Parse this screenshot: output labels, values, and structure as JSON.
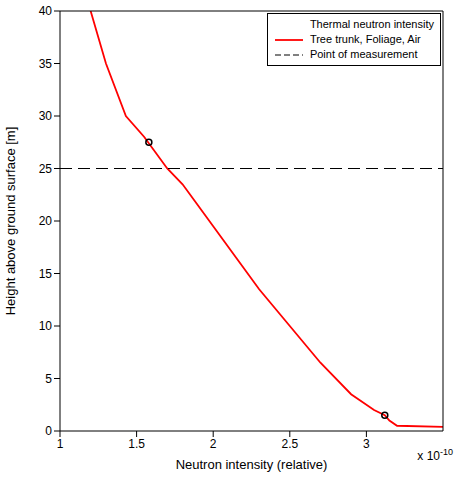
{
  "chart_data": {
    "type": "line",
    "x_label": "Neutron intensity (relative)",
    "y_label": "Height above ground surface [m]",
    "x_multiplier": {
      "base": "x 10",
      "exponent": "-10"
    },
    "xlim": [
      1,
      3.5
    ],
    "xticks": [
      1,
      1.5,
      2,
      2.5,
      3
    ],
    "ylim": [
      0,
      40
    ],
    "yticks": [
      0,
      5,
      10,
      15,
      20,
      25,
      30,
      35,
      40
    ],
    "grid": false,
    "legend": "upper right",
    "legend_title": "Thermal neutron intensity",
    "series": [
      {
        "name": "Tree trunk, Foliage, Air",
        "color": "#ff0000",
        "line_style": "solid",
        "x": [
          1.2,
          1.3,
          1.43,
          1.55,
          1.6,
          1.7,
          1.8,
          1.9,
          2.0,
          2.15,
          2.3,
          2.5,
          2.7,
          2.9,
          3.05,
          3.12,
          3.15,
          3.2,
          3.5
        ],
        "values": [
          40,
          35,
          30,
          28,
          27,
          25,
          23.5,
          21.5,
          19.5,
          16.5,
          13.5,
          10,
          6.5,
          3.5,
          2,
          1.5,
          1,
          0.5,
          0.4
        ]
      },
      {
        "name": "Point of measurement",
        "color": "#000000",
        "line_style": "dashed",
        "x": [
          1,
          3.5
        ],
        "values": [
          25,
          25
        ]
      },
      {
        "type": "scatter",
        "color": "#000000",
        "marker": "circle",
        "x": [
          1.58,
          3.12
        ],
        "values": [
          27.5,
          1.5
        ]
      }
    ]
  }
}
